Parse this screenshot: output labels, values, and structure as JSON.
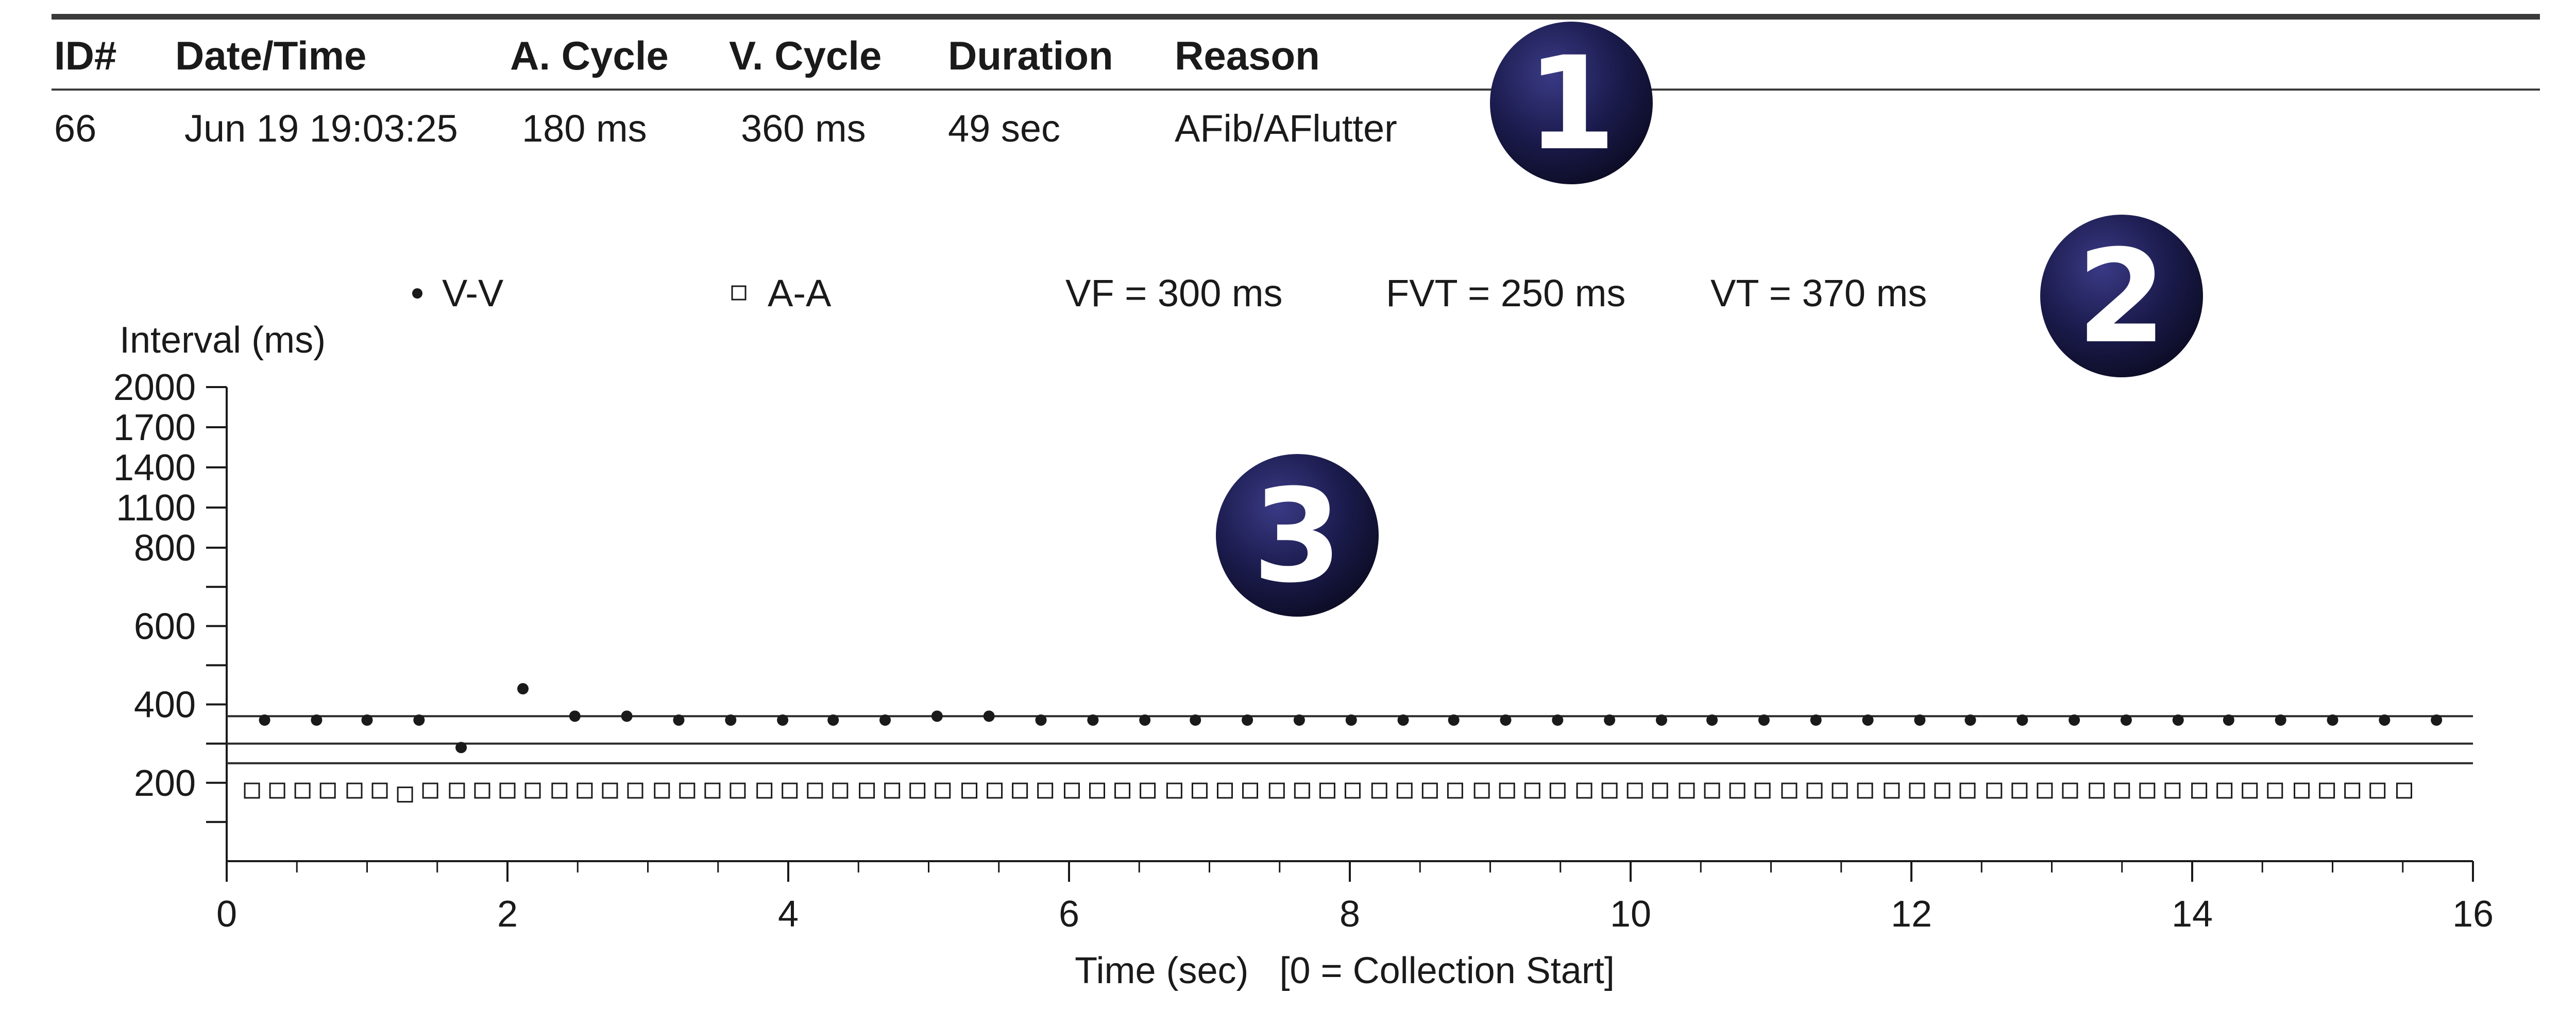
{
  "episode_table": {
    "headers": {
      "id": "ID#",
      "datetime": "Date/Time",
      "a_cycle": "A. Cycle",
      "v_cycle": "V. Cycle",
      "duration": "Duration",
      "reason": "Reason"
    },
    "row": {
      "id": "66",
      "datetime": "Jun 19 19:03:25",
      "a_cycle": "180 ms",
      "v_cycle": "360 ms",
      "duration": "49 sec",
      "reason": "AFib/AFlutter"
    }
  },
  "badges": [
    "1",
    "2",
    "3"
  ],
  "badge_color": "#1b1b4d",
  "legend": {
    "vv_label": "V-V",
    "aa_label": "A-A",
    "vf": "VF = 300 ms",
    "fvt": "FVT = 250 ms",
    "vt": "VT = 370 ms"
  },
  "chart_data": {
    "type": "scatter",
    "ylabel": "Interval (ms)",
    "xlabel": "Time (sec)   [0 = Collection Start]",
    "xlim": [
      0,
      16
    ],
    "ylim": [
      0,
      2000
    ],
    "y_scale": "piecewise: linear 0-800, compressed 800-2000",
    "x_ticks": [
      "0",
      "2",
      "4",
      "6",
      "8",
      "10",
      "12",
      "14",
      "16"
    ],
    "y_ticks": [
      "200",
      "400",
      "600",
      "800",
      "1100",
      "1400",
      "1700",
      "2000"
    ],
    "threshold_lines": [
      {
        "name": "VT",
        "value": 370
      },
      {
        "name": "VF",
        "value": 300
      },
      {
        "name": "FVT",
        "value": 250
      }
    ],
    "series": [
      {
        "name": "V-V",
        "marker": "filled-circle",
        "x": [
          0.27,
          0.64,
          1.0,
          1.37,
          1.67,
          2.11,
          2.48,
          2.85,
          3.22,
          3.59,
          3.96,
          4.32,
          4.69,
          5.06,
          5.43,
          5.8,
          6.17,
          6.54,
          6.9,
          7.27,
          7.64,
          8.01,
          8.38,
          8.74,
          9.11,
          9.48,
          9.85,
          10.22,
          10.58,
          10.95,
          11.32,
          11.69,
          12.06,
          12.42,
          12.79,
          13.16,
          13.53,
          13.9,
          14.26,
          14.63,
          15.0,
          15.37,
          15.74
        ],
        "y": [
          360,
          360,
          360,
          360,
          290,
          440,
          370,
          370,
          360,
          360,
          360,
          360,
          360,
          370,
          370,
          360,
          360,
          360,
          360,
          360,
          360,
          360,
          360,
          360,
          360,
          360,
          360,
          360,
          360,
          360,
          360,
          360,
          360,
          360,
          360,
          360,
          360,
          360,
          360,
          360,
          360,
          360,
          360
        ]
      },
      {
        "name": "A-A",
        "marker": "open-square",
        "x": [
          0.18,
          0.36,
          0.54,
          0.72,
          0.91,
          1.09,
          1.27,
          1.45,
          1.64,
          1.82,
          2.0,
          2.18,
          2.37,
          2.55,
          2.73,
          2.91,
          3.1,
          3.28,
          3.46,
          3.64,
          3.83,
          4.01,
          4.19,
          4.37,
          4.56,
          4.74,
          4.92,
          5.1,
          5.29,
          5.47,
          5.65,
          5.83,
          6.02,
          6.2,
          6.38,
          6.56,
          6.75,
          6.93,
          7.11,
          7.29,
          7.48,
          7.66,
          7.84,
          8.02,
          8.21,
          8.39,
          8.57,
          8.75,
          8.94,
          9.12,
          9.3,
          9.48,
          9.67,
          9.85,
          10.03,
          10.21,
          10.4,
          10.58,
          10.76,
          10.94,
          11.13,
          11.31,
          11.49,
          11.67,
          11.86,
          12.04,
          12.22,
          12.4,
          12.59,
          12.77,
          12.95,
          13.13,
          13.32,
          13.5,
          13.68,
          13.86,
          14.05,
          14.23,
          14.41,
          14.59,
          14.78,
          14.96,
          15.14,
          15.32,
          15.51
        ],
        "y": [
          180,
          180,
          180,
          180,
          180,
          180,
          170,
          180,
          180,
          180,
          180,
          180,
          180,
          180,
          180,
          180,
          180,
          180,
          180,
          180,
          180,
          180,
          180,
          180,
          180,
          180,
          180,
          180,
          180,
          180,
          180,
          180,
          180,
          180,
          180,
          180,
          180,
          180,
          180,
          180,
          180,
          180,
          180,
          180,
          180,
          180,
          180,
          180,
          180,
          180,
          180,
          180,
          180,
          180,
          180,
          180,
          180,
          180,
          180,
          180,
          180,
          180,
          180,
          180,
          180,
          180,
          180,
          180,
          180,
          180,
          180,
          180,
          180,
          180,
          180,
          180,
          180,
          180,
          180,
          180,
          180,
          180,
          180,
          180,
          180
        ]
      }
    ]
  }
}
